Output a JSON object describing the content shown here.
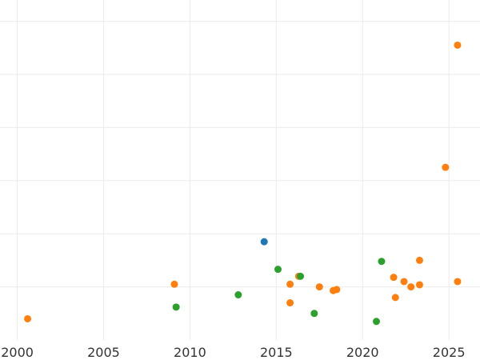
{
  "chart_data": {
    "type": "scatter",
    "title": "",
    "xlabel": "",
    "ylabel": "",
    "grid": true,
    "xlim": [
      1999,
      2026.8
    ],
    "ylim": [
      0,
      6.4
    ],
    "x_ticks": [
      2000,
      2005,
      2010,
      2015,
      2020,
      2025
    ],
    "x_tick_labels": [
      "2000",
      "2005",
      "2010",
      "2015",
      "2020",
      "2025"
    ],
    "y_gridlines": [
      1,
      2,
      3,
      4,
      5,
      6
    ],
    "series": [
      {
        "color": "#1f77b4",
        "points": [
          [
            2014.3,
            1.85
          ]
        ]
      },
      {
        "color": "#ff7f0e",
        "points": [
          [
            2000.6,
            0.4
          ],
          [
            2009.1,
            1.05
          ],
          [
            2015.8,
            1.05
          ],
          [
            2015.8,
            0.7
          ],
          [
            2016.3,
            1.2
          ],
          [
            2017.5,
            1.0
          ],
          [
            2018.3,
            0.93
          ],
          [
            2018.5,
            0.95
          ],
          [
            2021.8,
            1.18
          ],
          [
            2021.9,
            0.8
          ],
          [
            2022.4,
            1.1
          ],
          [
            2022.8,
            1.0
          ],
          [
            2023.3,
            1.04
          ],
          [
            2023.3,
            1.5
          ],
          [
            2024.8,
            3.25
          ],
          [
            2025.5,
            1.1
          ],
          [
            2025.5,
            5.55
          ]
        ]
      },
      {
        "color": "#2ca02c",
        "points": [
          [
            2009.2,
            0.62
          ],
          [
            2012.8,
            0.85
          ],
          [
            2015.1,
            1.33
          ],
          [
            2016.4,
            1.2
          ],
          [
            2017.2,
            0.5
          ],
          [
            2020.8,
            0.35
          ],
          [
            2021.1,
            1.48
          ]
        ]
      }
    ]
  }
}
